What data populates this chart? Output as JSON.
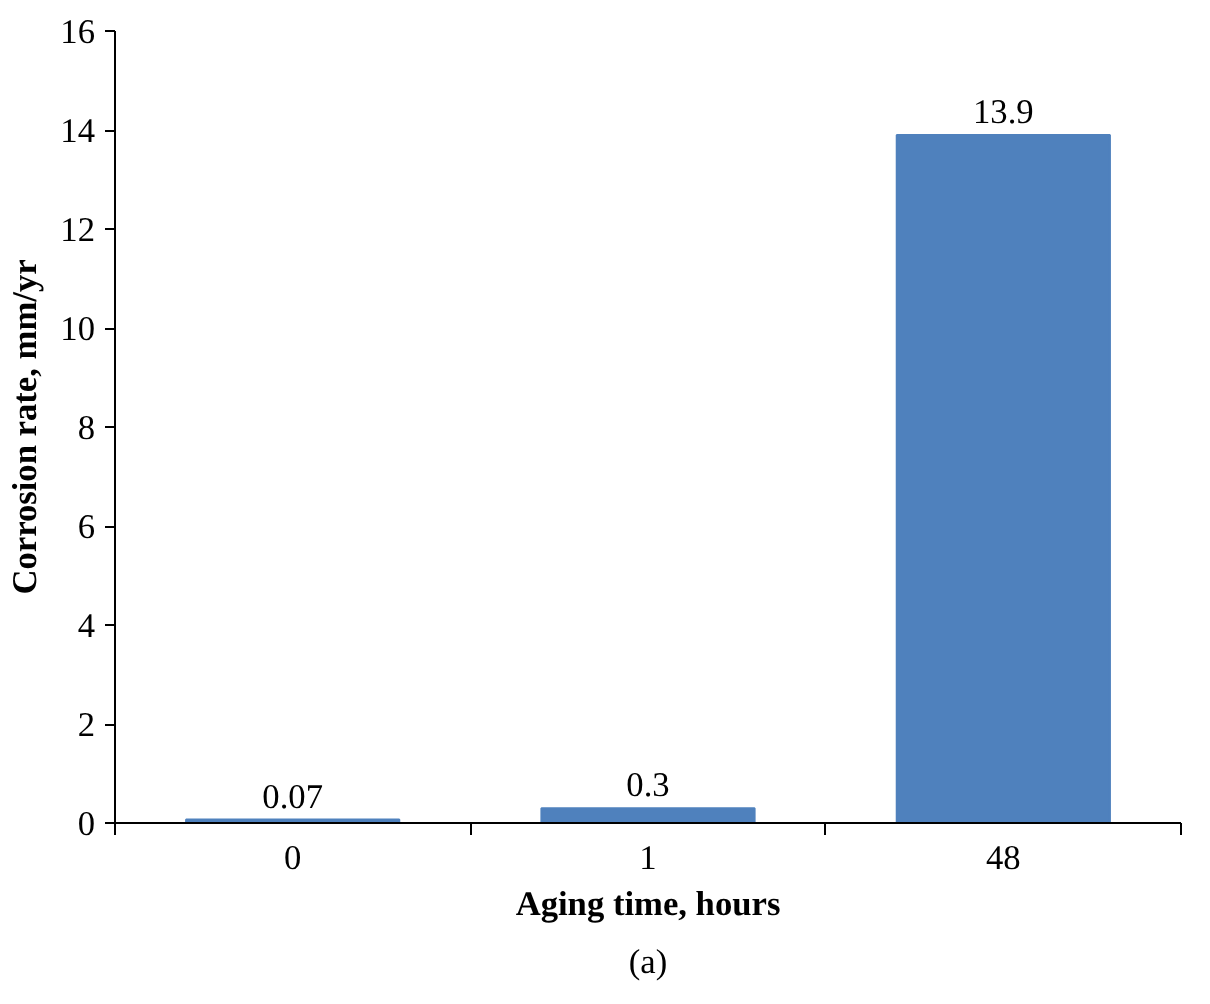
{
  "chart_data": {
    "type": "bar",
    "xlabel": "Aging time, hours",
    "ylabel": "Corrosion rate, mm/yr",
    "categories": [
      "0",
      "1",
      "48"
    ],
    "values": [
      0.07,
      0.3,
      13.9
    ],
    "color": "#4f81bd",
    "ylim": [
      0,
      16
    ],
    "yticks": [
      0,
      2,
      4,
      6,
      8,
      10,
      12,
      14,
      16
    ],
    "grid": false,
    "data_labels": true,
    "annotations": [
      "(a)"
    ]
  }
}
